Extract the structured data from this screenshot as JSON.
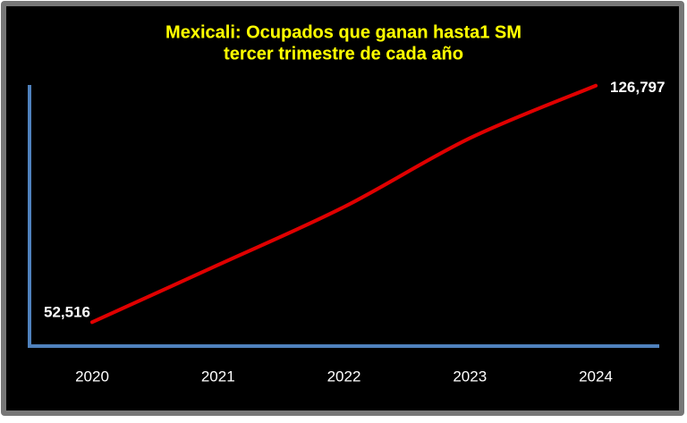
{
  "chart_data": {
    "type": "line",
    "title": "Mexicali: Ocupados que ganan hasta1 SM",
    "subtitle": "tercer trimestre de cada año",
    "categories": [
      "2020",
      "2021",
      "2022",
      "2023",
      "2024"
    ],
    "series": [
      {
        "color": "#e00000",
        "values": [
          52516,
          70500,
          88700,
          110300,
          126797
        ],
        "value_labels": [
          "52,516",
          null,
          null,
          null,
          "126,797"
        ]
      }
    ],
    "ylim": [
      45000,
      127000
    ],
    "axis_color": "#4f81bd",
    "title_color": "#ffff00"
  }
}
